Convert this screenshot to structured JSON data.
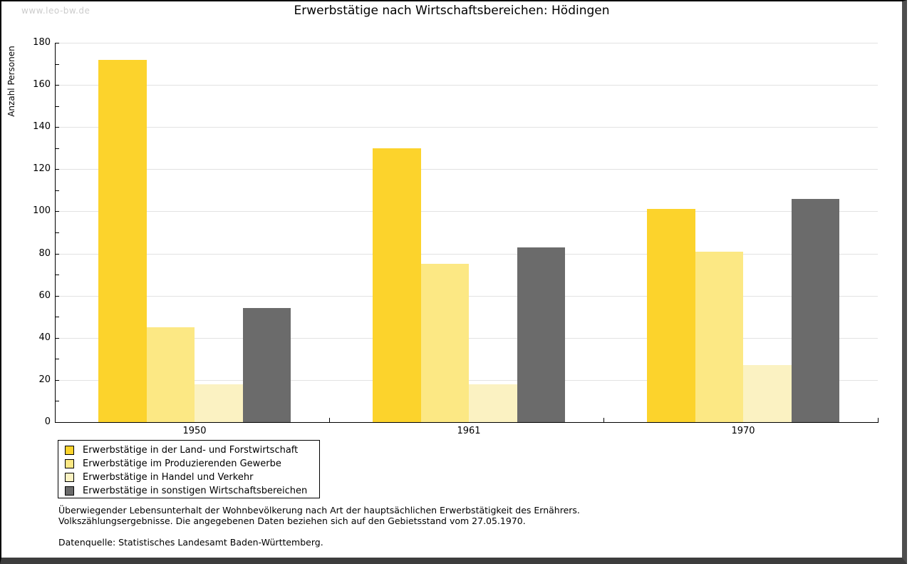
{
  "watermark": "www.leo-bw.de",
  "title": "Erwerbstätige nach Wirtschaftsbereichen: Hödingen",
  "chart_data": {
    "type": "bar",
    "title": "Erwerbstätige nach Wirtschaftsbereichen: Hödingen",
    "xlabel": "",
    "ylabel": "Anzahl Personen",
    "categories": [
      "1950",
      "1961",
      "1970"
    ],
    "series": [
      {
        "name": "Erwerbstätige in der Land- und Forstwirtschaft",
        "color": "#fcd32c",
        "values": [
          172,
          130,
          101
        ]
      },
      {
        "name": "Erwerbstätige im Produzierenden Gewerbe",
        "color": "#fce884",
        "values": [
          45,
          75,
          81
        ]
      },
      {
        "name": "Erwerbstätige in Handel und Verkehr",
        "color": "#fbf2c2",
        "values": [
          18,
          18,
          27
        ]
      },
      {
        "name": "Erwerbstätige in sonstigen Wirtschaftsbereichen",
        "color": "#6b6b6b",
        "values": [
          54,
          83,
          106
        ]
      }
    ],
    "ylim": [
      0,
      180
    ],
    "ytick_step": 20,
    "yminor_step": 10,
    "grid": true,
    "legend_position": "bottom-left"
  },
  "colors": {
    "gridline": "#e2e2e2",
    "axis": "#000000",
    "watermark": "#cccccc"
  },
  "footer": {
    "line1": "Überwiegender Lebensunterhalt der Wohnbevölkerung nach Art der hauptsächlichen Erwerbstätigkeit des Ernährers.",
    "line2": "Volkszählungsergebnisse. Die angegebenen Daten beziehen sich auf den Gebietsstand vom 27.05.1970.",
    "source": "Datenquelle: Statistisches Landesamt Baden-Württemberg."
  }
}
